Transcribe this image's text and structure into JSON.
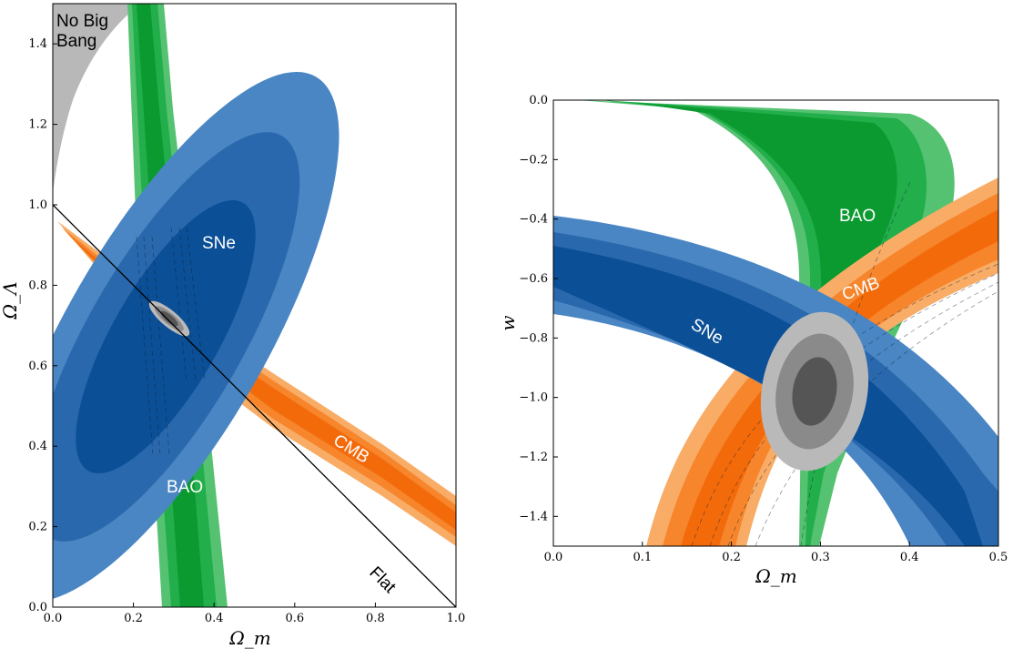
{
  "colors": {
    "sne": [
      "#4a86c4",
      "#2a68ad",
      "#0b4f96"
    ],
    "bao": [
      "#55c272",
      "#22ae4b",
      "#0b9a2f"
    ],
    "cmb": [
      "#f8ac66",
      "#f6852c",
      "#f36a0a"
    ],
    "combined": [
      "#b9b9b9",
      "#8a8a8a",
      "#555555"
    ],
    "nobigbang": "#b8b8b8"
  },
  "chart_data": [
    {
      "type": "contour",
      "xlabel": "Ω_m",
      "ylabel": "Ω_Λ",
      "xlim": [
        0.0,
        1.0
      ],
      "ylim": [
        0.0,
        1.5
      ],
      "xticks": [
        "0.0",
        "0.2",
        "0.4",
        "0.6",
        "0.8",
        "1.0"
      ],
      "yticks": [
        "0.0",
        "0.2",
        "0.4",
        "0.6",
        "0.8",
        "1.0",
        "1.2",
        "1.4"
      ],
      "labels": {
        "sne": "SNe",
        "bao": "BAO",
        "cmb": "CMB",
        "flat": "Flat",
        "nobigbang": "No Big Bang"
      },
      "flat_line": [
        [
          0.0,
          1.0
        ],
        [
          1.0,
          0.0
        ]
      ],
      "series": [
        {
          "name": "SNe",
          "center": [
            0.28,
            0.73
          ],
          "confidence_levels": 3
        },
        {
          "name": "BAO",
          "center": [
            0.3,
            0.75
          ],
          "confidence_levels": 3
        },
        {
          "name": "CMB",
          "center": [
            0.3,
            0.7
          ],
          "confidence_levels": 3
        },
        {
          "name": "combined",
          "center": [
            0.295,
            0.715
          ],
          "confidence_levels": 3
        }
      ]
    },
    {
      "type": "contour",
      "xlabel": "Ω_m",
      "ylabel": "w",
      "xlim": [
        0.0,
        0.5
      ],
      "ylim": [
        -1.5,
        0.0
      ],
      "xticks": [
        "0.0",
        "0.1",
        "0.2",
        "0.3",
        "0.4",
        "0.5"
      ],
      "yticks": [
        "0.0",
        "−0.2",
        "−0.4",
        "−0.6",
        "−0.8",
        "−1.0",
        "−1.2",
        "−1.4"
      ],
      "labels": {
        "sne": "SNe",
        "bao": "BAO",
        "cmb": "CMB"
      },
      "series": [
        {
          "name": "SNe",
          "center": [
            0.28,
            -0.95
          ],
          "confidence_levels": 3
        },
        {
          "name": "BAO",
          "center": [
            0.32,
            -0.75
          ],
          "confidence_levels": 3
        },
        {
          "name": "CMB",
          "center": [
            0.31,
            -0.95
          ],
          "confidence_levels": 3
        },
        {
          "name": "combined",
          "center": [
            0.29,
            -0.95
          ],
          "confidence_levels": 3
        }
      ]
    }
  ]
}
